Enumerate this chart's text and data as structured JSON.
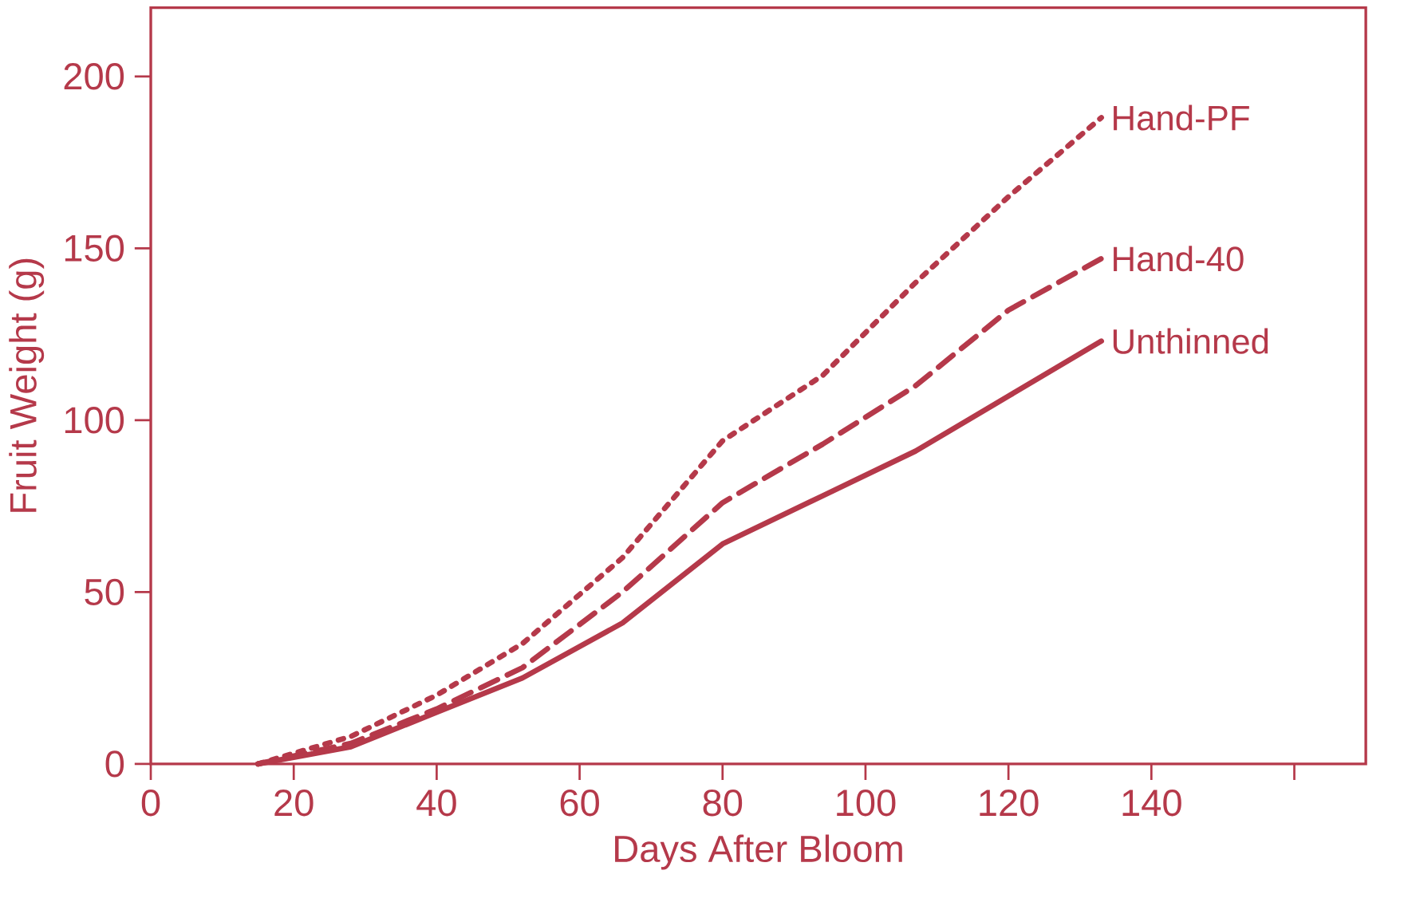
{
  "chart_data": {
    "type": "line",
    "xlabel": "Days After Bloom",
    "ylabel": "Fruit Weight (g)",
    "xlim": [
      0,
      170
    ],
    "ylim": [
      0,
      220
    ],
    "xticks": [
      0,
      20,
      40,
      60,
      80,
      100,
      120,
      140,
      {
        "value": 160,
        "label": null
      }
    ],
    "yticks": [
      0,
      50,
      100,
      150,
      200
    ],
    "grid": false,
    "legend": false,
    "marker": "none",
    "series": [
      {
        "name": "Hand-PF",
        "color": "#b5394a",
        "line_style": "dotted",
        "x": [
          15,
          28,
          40,
          52,
          66,
          80,
          94,
          107,
          120,
          133
        ],
        "values": [
          0,
          8,
          20,
          35,
          60,
          94,
          113,
          140,
          165,
          188
        ]
      },
      {
        "name": "Hand-40",
        "color": "#b5394a",
        "line_style": "dashed",
        "x": [
          15,
          28,
          40,
          52,
          66,
          80,
          94,
          107,
          120,
          133
        ],
        "values": [
          0,
          6,
          16,
          28,
          50,
          76,
          93,
          110,
          132,
          147
        ]
      },
      {
        "name": "Unthinned",
        "color": "#b5394a",
        "line_style": "solid",
        "x": [
          15,
          28,
          40,
          52,
          66,
          80,
          94,
          107,
          120,
          133
        ],
        "values": [
          0,
          5,
          15,
          25,
          41,
          64,
          78,
          91,
          107,
          123
        ]
      }
    ]
  }
}
